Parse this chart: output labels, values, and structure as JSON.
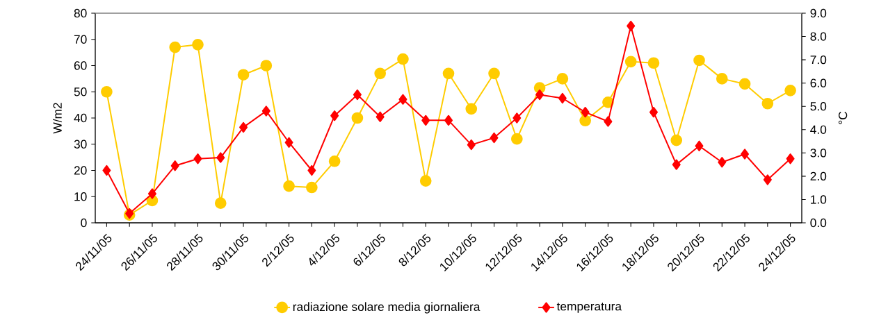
{
  "chart_data": {
    "type": "line",
    "categories": [
      "24/11/05",
      null,
      "26/11/05",
      null,
      "28/11/05",
      null,
      "30/11/05",
      null,
      "2/12/05",
      null,
      "4/12/05",
      null,
      "6/12/05",
      null,
      "8/12/05",
      null,
      "10/12/05",
      null,
      "12/12/05",
      null,
      "14/12/05",
      null,
      "16/12/05",
      null,
      "18/12/05",
      null,
      "20/12/05",
      null,
      "22/12/05",
      null,
      "24/12/05"
    ],
    "series": [
      {
        "name": "radiazione solare media giornaliera",
        "color": "#ffcc00",
        "marker": "circle",
        "axis": "y",
        "values": [
          50,
          3,
          8.5,
          67,
          68,
          7.5,
          56.5,
          60,
          14,
          13.5,
          23.5,
          40,
          57,
          62.5,
          16,
          57,
          43.5,
          57,
          32,
          51.5,
          55,
          39,
          46,
          61.5,
          61,
          31.5,
          62,
          55,
          53,
          45.5,
          50.5
        ]
      },
      {
        "name": "temperatura",
        "color": "#ff0000",
        "marker": "diamond",
        "axis": "y2",
        "values": [
          2.25,
          0.4,
          1.25,
          2.45,
          2.75,
          2.8,
          4.1,
          4.8,
          3.45,
          2.25,
          4.6,
          5.5,
          4.55,
          5.3,
          4.4,
          4.4,
          3.35,
          3.65,
          4.5,
          5.5,
          5.35,
          4.75,
          4.35,
          8.45,
          4.75,
          2.5,
          3.3,
          2.6,
          2.95,
          1.85,
          2.75
        ]
      }
    ],
    "ylabel": "W/m2",
    "y2label": "°C",
    "ylim": [
      0,
      80
    ],
    "yticks": [
      0,
      10,
      20,
      30,
      40,
      50,
      60,
      70,
      80
    ],
    "y2lim": [
      0,
      9
    ],
    "y2ticks": [
      {
        "value": 0,
        "label": "0.0"
      },
      {
        "value": 1,
        "label": "1.0"
      },
      {
        "value": 2,
        "label": "2.0"
      },
      {
        "value": 3,
        "label": "3.0"
      },
      {
        "value": 4,
        "label": "4.0"
      },
      {
        "value": 5,
        "label": "5.0"
      },
      {
        "value": 6,
        "label": "6.0"
      },
      {
        "value": 7,
        "label": "7.0"
      },
      {
        "value": 8,
        "label": "8.0"
      },
      {
        "value": 9,
        "label": "9.0"
      }
    ],
    "grid": false,
    "legend": "bottom"
  }
}
